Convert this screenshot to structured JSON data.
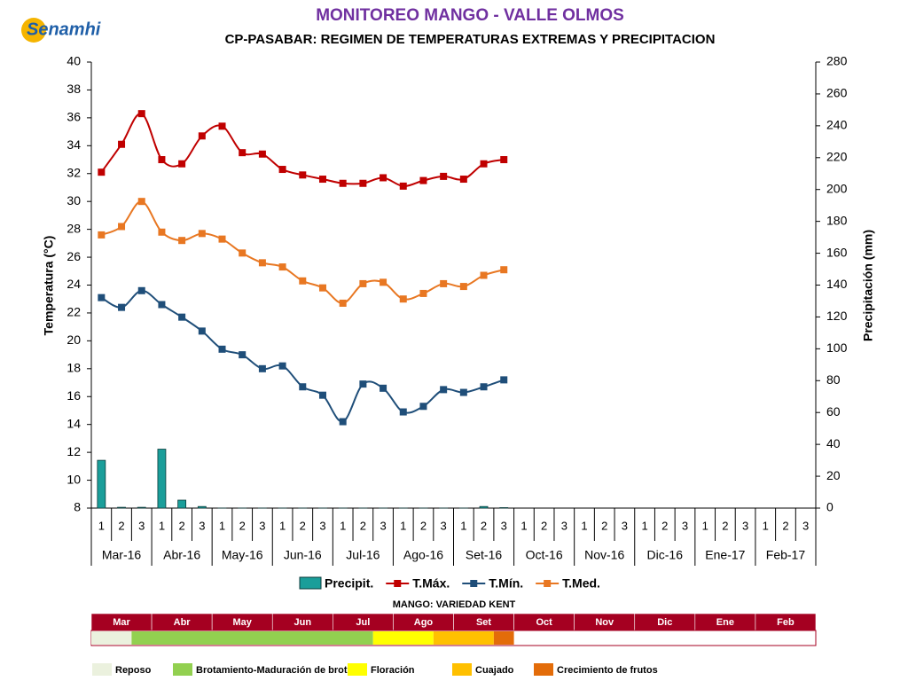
{
  "chart_data": {
    "type": "line",
    "logo": "Senamhi",
    "title": "MONITOREO MANGO - VALLE OLMOS",
    "subtitle": "CP-PASABAR: REGIMEN DE TEMPERATURAS EXTREMAS Y PRECIPITACION",
    "ylabel": "Temperatura (°C)",
    "y2label": "Precipitación (mm)",
    "categories": [
      "1",
      "2",
      "3",
      "1",
      "2",
      "3",
      "1",
      "2",
      "3",
      "1",
      "2",
      "3",
      "1",
      "2",
      "3",
      "1",
      "2",
      "3",
      "1",
      "2",
      "3",
      "1",
      "2",
      "3",
      "1",
      "2",
      "3",
      "1",
      "2",
      "3",
      "1",
      "2",
      "3",
      "1",
      "2",
      "3"
    ],
    "groups": [
      "Mar-16",
      "Abr-16",
      "May-16",
      "Jun-16",
      "Jul-16",
      "Ago-16",
      "Set-16",
      "Oct-16",
      "Nov-16",
      "Dic-16",
      "Ene-17",
      "Feb-17"
    ],
    "ylim": [
      8,
      40
    ],
    "yticks": [
      8,
      10,
      12,
      14,
      16,
      18,
      20,
      22,
      24,
      26,
      28,
      30,
      32,
      34,
      36,
      38,
      40
    ],
    "y2lim": [
      0,
      280
    ],
    "y2ticks": [
      0,
      20,
      40,
      60,
      80,
      100,
      120,
      140,
      160,
      180,
      200,
      220,
      240,
      260,
      280
    ],
    "series": [
      {
        "name": "Precipit.",
        "type": "bar",
        "axis": "y2",
        "color": "#1a9e9a",
        "values": [
          30,
          0.5,
          0.5,
          37,
          5,
          1,
          0,
          0,
          0,
          0,
          0,
          0,
          0,
          0,
          0,
          0,
          0,
          0,
          0,
          1,
          0.3,
          null,
          null,
          null,
          null,
          null,
          null,
          null,
          null,
          null,
          null,
          null,
          null,
          null,
          null,
          null
        ]
      },
      {
        "name": "T.Máx.",
        "color": "#c00000",
        "values": [
          32.1,
          34.1,
          36.3,
          33.0,
          32.7,
          34.7,
          35.4,
          33.5,
          33.4,
          32.3,
          31.9,
          31.6,
          31.3,
          31.3,
          31.7,
          31.1,
          31.5,
          31.8,
          31.6,
          32.7,
          33.0,
          null,
          null,
          null,
          null,
          null,
          null,
          null,
          null,
          null,
          null,
          null,
          null,
          null,
          null,
          null
        ]
      },
      {
        "name": "T.Mín.",
        "color": "#1f4e79",
        "values": [
          23.1,
          22.4,
          23.6,
          22.6,
          21.7,
          20.7,
          19.4,
          19.0,
          18.0,
          18.2,
          16.7,
          16.1,
          14.2,
          16.9,
          16.6,
          14.9,
          15.3,
          16.5,
          16.3,
          16.7,
          17.2,
          null,
          null,
          null,
          null,
          null,
          null,
          null,
          null,
          null,
          null,
          null,
          null,
          null,
          null,
          null
        ]
      },
      {
        "name": "T.Med.",
        "color": "#e87722",
        "values": [
          27.6,
          28.2,
          30.0,
          27.8,
          27.2,
          27.7,
          27.3,
          26.3,
          25.6,
          25.3,
          24.3,
          23.8,
          22.7,
          24.1,
          24.2,
          23.0,
          23.4,
          24.1,
          23.9,
          24.7,
          25.1,
          null,
          null,
          null,
          null,
          null,
          null,
          null,
          null,
          null,
          null,
          null,
          null,
          null,
          null,
          null
        ]
      }
    ],
    "phenology": {
      "title": "MANGO: VARIEDAD KENT",
      "months": [
        "Mar",
        "Abr",
        "May",
        "Jun",
        "Jul",
        "Ago",
        "Set",
        "Oct",
        "Nov",
        "Dic",
        "Ene",
        "Feb"
      ],
      "header_color": "#a50021",
      "stages": [
        {
          "name": "Reposo",
          "color": "#ebf1de"
        },
        {
          "name": "Brotamiento-Maduración de brotes",
          "color": "#92d050"
        },
        {
          "name": "Floración",
          "color": "#ffff00"
        },
        {
          "name": "Cuajado",
          "color": "#ffc000"
        },
        {
          "name": "Crecimiento de frutos",
          "color": "#e36c09"
        }
      ]
    }
  }
}
